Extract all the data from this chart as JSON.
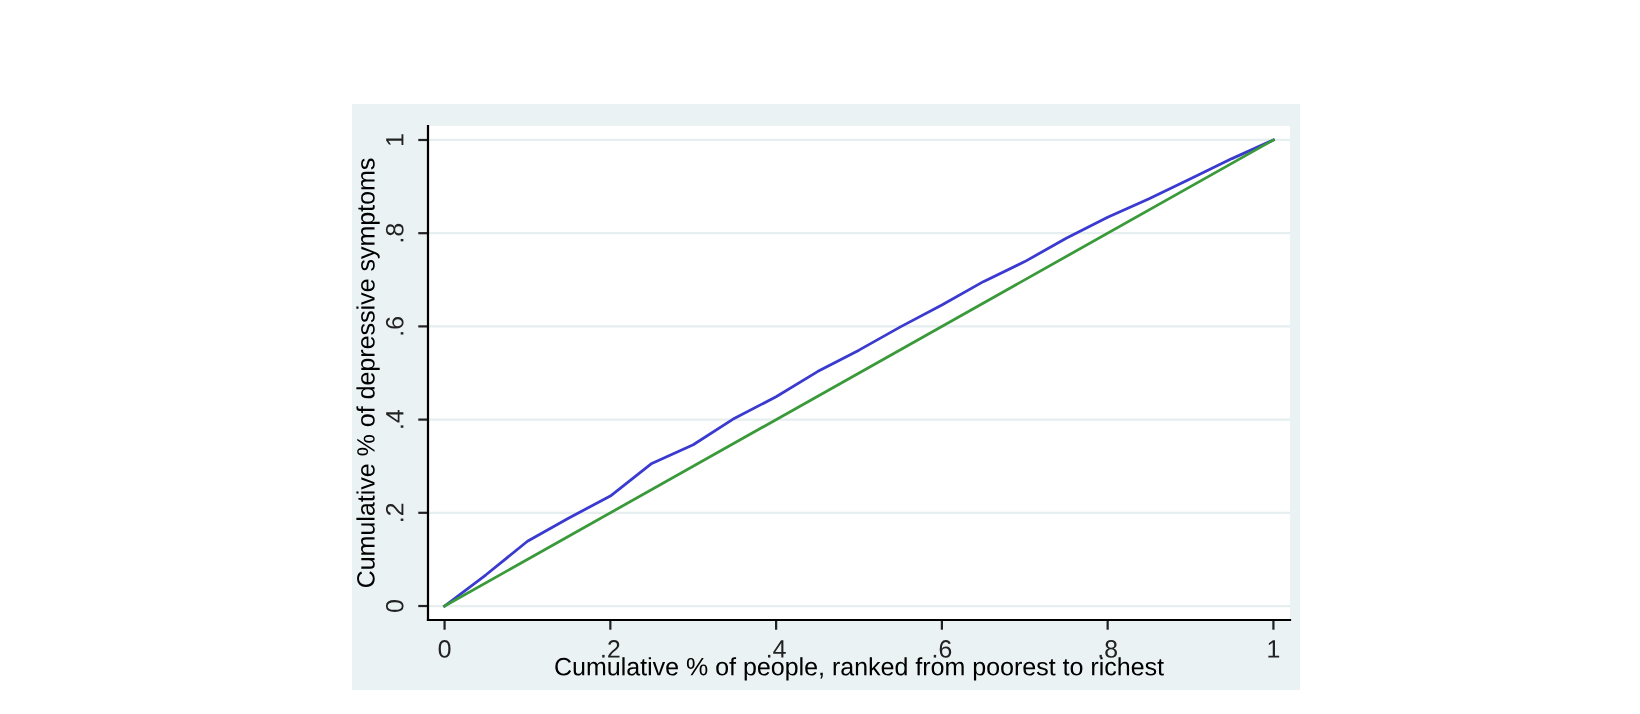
{
  "chart_data": {
    "type": "line",
    "xlabel": "Cumulative % of people, ranked from poorest to richest",
    "ylabel": "Cumulative % of depressive symptoms",
    "series": [
      {
        "color": "#3a3ad0",
        "x": [
          0,
          0.05,
          0.1,
          0.15,
          0.2,
          0.25,
          0.3,
          0.35,
          0.4,
          0.45,
          0.5,
          0.55,
          0.6,
          0.65,
          0.7,
          0.75,
          0.8,
          0.85,
          0.9,
          0.95,
          1
        ],
        "values": [
          0,
          0.067,
          0.139,
          0.189,
          0.236,
          0.306,
          0.346,
          0.403,
          0.449,
          0.503,
          0.549,
          0.599,
          0.646,
          0.696,
          0.739,
          0.789,
          0.834,
          0.874,
          0.917,
          0.96,
          1
        ]
      },
      {
        "color": "#3a9a3a",
        "x": [
          0,
          1
        ],
        "values": [
          0,
          1
        ]
      }
    ],
    "xlim": [
      -0.02,
      1.02
    ],
    "ylim": [
      -0.03,
      1.03
    ],
    "xticks": [
      0,
      {
        "value": 0.2,
        "label": ".2"
      },
      {
        "value": 0.4,
        "label": ".4"
      },
      {
        "value": 0.6,
        "label": ".6"
      },
      {
        "value": 0.8,
        "label": ".8"
      },
      1
    ],
    "yticks": [
      0,
      {
        "value": 0.2,
        "label": ".2"
      },
      {
        "value": 0.4,
        "label": ".4"
      },
      {
        "value": 0.6,
        "label": ".6"
      },
      {
        "value": 0.8,
        "label": ".8"
      },
      1
    ],
    "grid": "y",
    "legend": false
  }
}
